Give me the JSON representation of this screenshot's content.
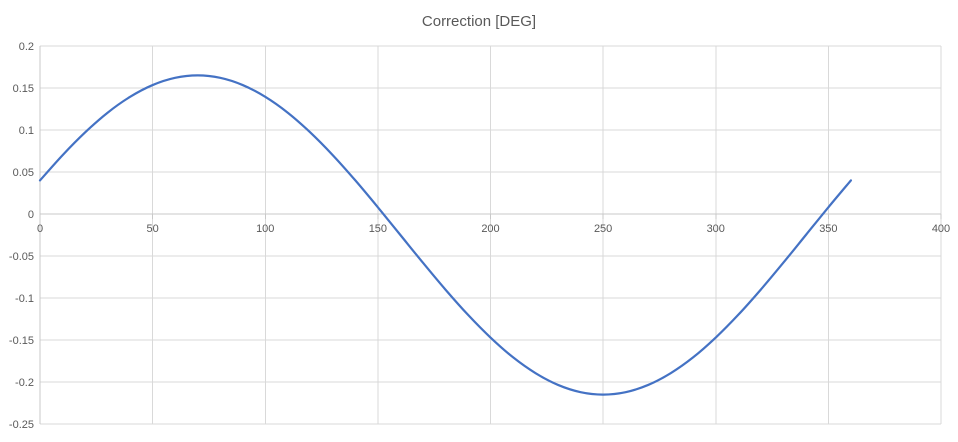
{
  "page": {
    "background": "#FFFFFF"
  },
  "chart": {
    "title": "Correction [DEG]"
  },
  "colors": {
    "line": "#4472C4",
    "gridline": "#D9D9D9",
    "axis": "#C9C9C9",
    "tick_text": "#595959",
    "title_text": "#595959",
    "background": "#FFFFFF"
  },
  "chart_data": {
    "type": "line",
    "title": "Correction [DEG]",
    "xlim": [
      0,
      400
    ],
    "ylim": [
      -0.25,
      0.2
    ],
    "grid": true,
    "legend": false,
    "x_ticks": [
      0,
      50,
      100,
      150,
      200,
      250,
      300,
      350,
      400
    ],
    "x_tick_labels": [
      "0",
      "50",
      "100",
      "150",
      "200",
      "250",
      "300",
      "350",
      "400"
    ],
    "y_ticks": [
      0.2,
      0.15,
      0.1,
      0.05,
      0,
      -0.05,
      -0.1,
      -0.15,
      -0.2,
      -0.25
    ],
    "y_tick_labels": [
      "0.2",
      "0.15",
      "0.1",
      "0.05",
      "0",
      "-0.05",
      "-0.1",
      "-0.15",
      "-0.2",
      "-0.25"
    ],
    "series": [
      {
        "name": "Correction",
        "color": "#4472C4",
        "x": [
          0,
          10,
          20,
          30,
          40,
          50,
          60,
          70,
          80,
          90,
          100,
          110,
          120,
          130,
          140,
          150,
          160,
          170,
          180,
          190,
          200,
          210,
          220,
          230,
          240,
          250,
          260,
          270,
          280,
          290,
          300,
          310,
          320,
          330,
          340,
          350,
          360
        ],
        "y": [
          0.04,
          0.07,
          0.0971,
          0.1206,
          0.1395,
          0.1535,
          0.1621,
          0.165,
          0.1621,
          0.1535,
          0.1395,
          0.1206,
          0.0971,
          0.07,
          0.04,
          0.008,
          -0.025,
          -0.058,
          -0.09,
          -0.12,
          -0.1471,
          -0.1706,
          -0.1895,
          -0.2035,
          -0.2121,
          -0.215,
          -0.2121,
          -0.2035,
          -0.1895,
          -0.1706,
          -0.1471,
          -0.12,
          -0.09,
          -0.058,
          -0.025,
          0.008,
          0.04
        ]
      }
    ]
  }
}
